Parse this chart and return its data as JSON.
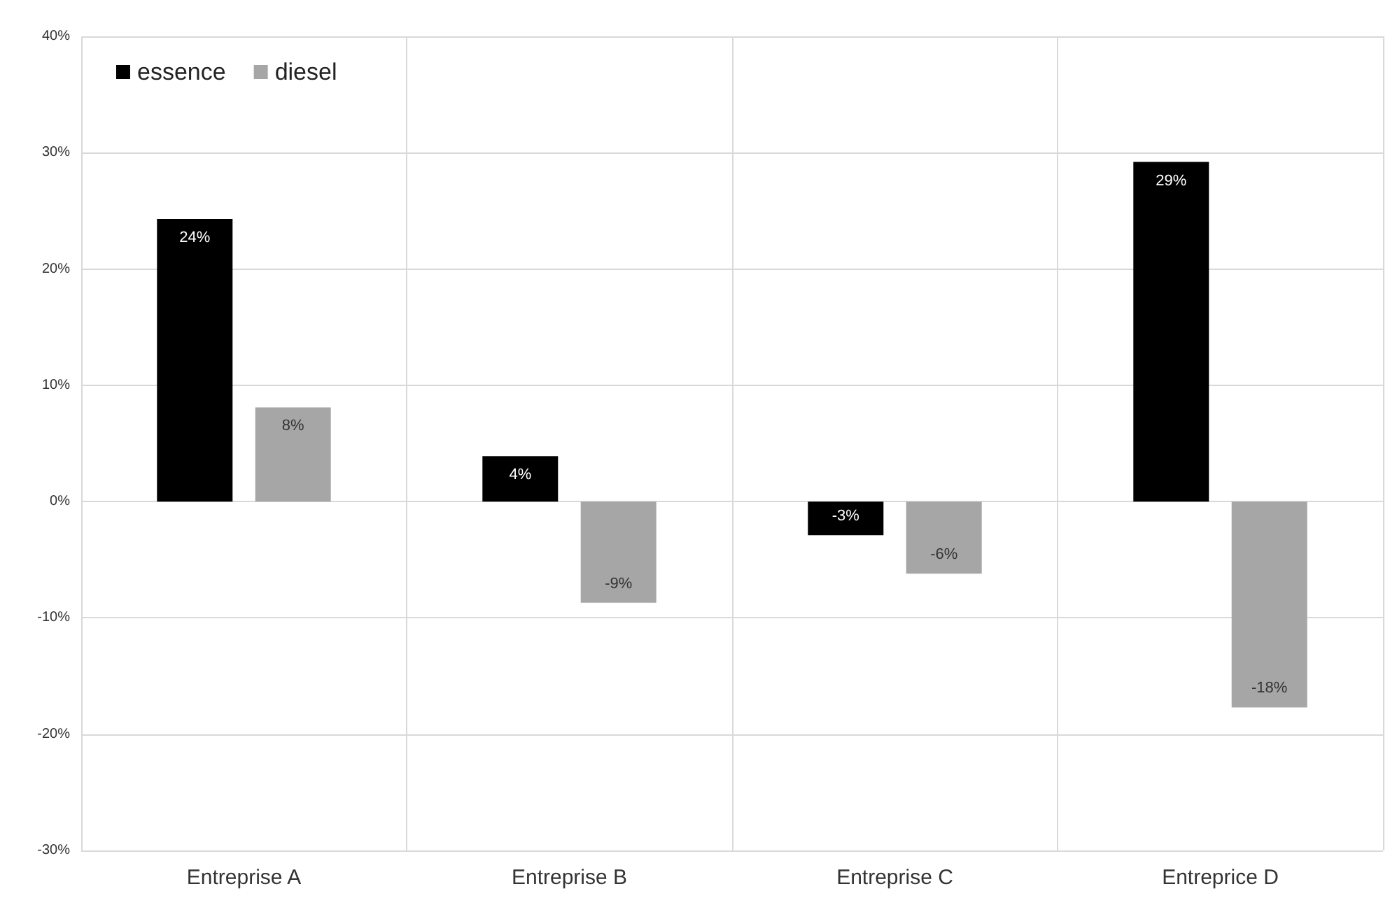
{
  "chart_data": {
    "type": "bar",
    "categories": [
      "Entreprise A",
      "Entreprise B",
      "Entreprise C",
      "Entreprice D"
    ],
    "series": [
      {
        "name": "essence",
        "color": "#000000",
        "values": [
          24.3,
          3.9,
          -2.9,
          29.2
        ],
        "value_labels": [
          "24%",
          "4%",
          "-3%",
          "29%"
        ]
      },
      {
        "name": "diesel",
        "color": "#a6a6a6",
        "values": [
          8.1,
          -8.7,
          -6.2,
          -17.7
        ],
        "value_labels": [
          "8%",
          "-9%",
          "-6%",
          "-18%"
        ]
      }
    ],
    "ylim": [
      -30,
      40
    ],
    "yticks": [
      {
        "value": -30,
        "label": "-30%"
      },
      {
        "value": -20,
        "label": "-20%"
      },
      {
        "value": -10,
        "label": "-10%"
      },
      {
        "value": 0,
        "label": "0%"
      },
      {
        "value": 10,
        "label": "10%"
      },
      {
        "value": 20,
        "label": "20%"
      },
      {
        "value": 30,
        "label": "30%"
      },
      {
        "value": 40,
        "label": "40%"
      }
    ],
    "grid": true,
    "legend": "top left"
  }
}
